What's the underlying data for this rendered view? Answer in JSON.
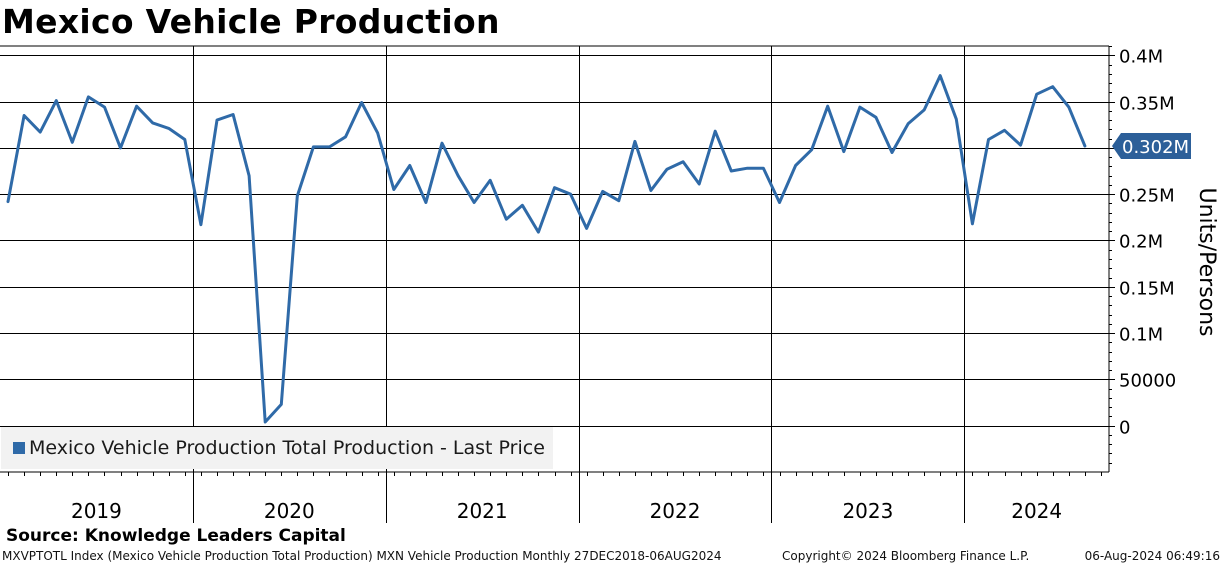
{
  "title": "Mexico Vehicle Production",
  "legend": {
    "label": "Mexico Vehicle Production Total Production - Last Price",
    "color": "#2f6aa8"
  },
  "source": "Source: Knowledge Leaders Capital",
  "footer": {
    "left": "MXVPTOTL Index (Mexico Vehicle Production Total Production) MXN Vehicle Production  Monthly 27DEC2018-06AUG2024",
    "middle": "Copyright© 2024 Bloomberg Finance L.P.",
    "right": "06-Aug-2024 06:49:16"
  },
  "chart_data": {
    "type": "line",
    "title": "Mexico Vehicle Production",
    "ylabel": "Units/Persons",
    "ylim": [
      -50000,
      410000
    ],
    "yticks": [
      {
        "value": 400000,
        "label": "0.4M"
      },
      {
        "value": 350000,
        "label": "0.35M"
      },
      {
        "value": 300000,
        "label": "0.3M"
      },
      {
        "value": 250000,
        "label": "0.25M"
      },
      {
        "value": 200000,
        "label": "0.2M"
      },
      {
        "value": 150000,
        "label": "0.15M"
      },
      {
        "value": 100000,
        "label": "0.1M"
      },
      {
        "value": 50000,
        "label": "50000"
      },
      {
        "value": 0,
        "label": "0"
      }
    ],
    "x_start_index": -0.5,
    "x_end_index": 68.5,
    "years": [
      "2019",
      "2020",
      "2021",
      "2022",
      "2023",
      "2024"
    ],
    "last_value": 302000,
    "last_label": "0.302M",
    "line_color": "#2f6aa8",
    "series": [
      {
        "name": "Mexico Vehicle Production Total Production - Last Price",
        "start": "Dec 2018",
        "values": [
          242000,
          335000,
          317000,
          351000,
          306000,
          355000,
          344000,
          300000,
          345000,
          327000,
          321000,
          309000,
          217000,
          330000,
          336000,
          270000,
          4000,
          23000,
          248000,
          301000,
          301000,
          312000,
          349000,
          316000,
          255000,
          281000,
          241000,
          305000,
          270000,
          241000,
          265000,
          223000,
          238000,
          209000,
          257000,
          250000,
          213000,
          253000,
          243000,
          307000,
          254000,
          277000,
          285000,
          261000,
          318000,
          275000,
          278000,
          278000,
          241000,
          281000,
          298000,
          345000,
          296000,
          344000,
          333000,
          295000,
          326000,
          341000,
          378000,
          331000,
          218000,
          309000,
          319000,
          303000,
          358000,
          366000,
          344000,
          302000
        ]
      }
    ]
  }
}
